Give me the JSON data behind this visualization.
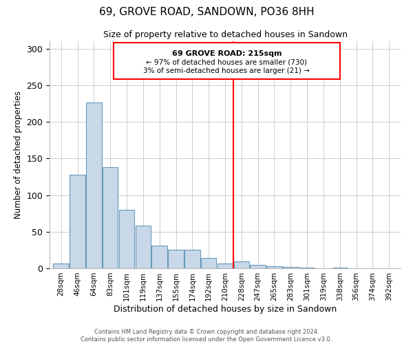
{
  "title": "69, GROVE ROAD, SANDOWN, PO36 8HH",
  "subtitle": "Size of property relative to detached houses in Sandown",
  "xlabel": "Distribution of detached houses by size in Sandown",
  "ylabel": "Number of detached properties",
  "bar_labels": [
    "28sqm",
    "46sqm",
    "64sqm",
    "83sqm",
    "101sqm",
    "119sqm",
    "137sqm",
    "155sqm",
    "174sqm",
    "192sqm",
    "210sqm",
    "228sqm",
    "247sqm",
    "265sqm",
    "283sqm",
    "301sqm",
    "319sqm",
    "338sqm",
    "356sqm",
    "374sqm",
    "392sqm"
  ],
  "bar_values": [
    7,
    128,
    226,
    138,
    80,
    58,
    31,
    25,
    25,
    14,
    7,
    9,
    5,
    3,
    2,
    1,
    0,
    1,
    0,
    0,
    0
  ],
  "bar_color": "#c8d8e8",
  "bar_edge_color": "#6699bb",
  "ylim": [
    0,
    310
  ],
  "yticks": [
    0,
    50,
    100,
    150,
    200,
    250,
    300
  ],
  "red_line_x": 10.5,
  "annotation_title": "69 GROVE ROAD: 215sqm",
  "annotation_line1": "← 97% of detached houses are smaller (730)",
  "annotation_line2": "3% of semi-detached houses are larger (21) →",
  "footer1": "Contains HM Land Registry data © Crown copyright and database right 2024.",
  "footer2": "Contains public sector information licensed under the Open Government Licence v3.0.",
  "plot_background": "#ffffff"
}
